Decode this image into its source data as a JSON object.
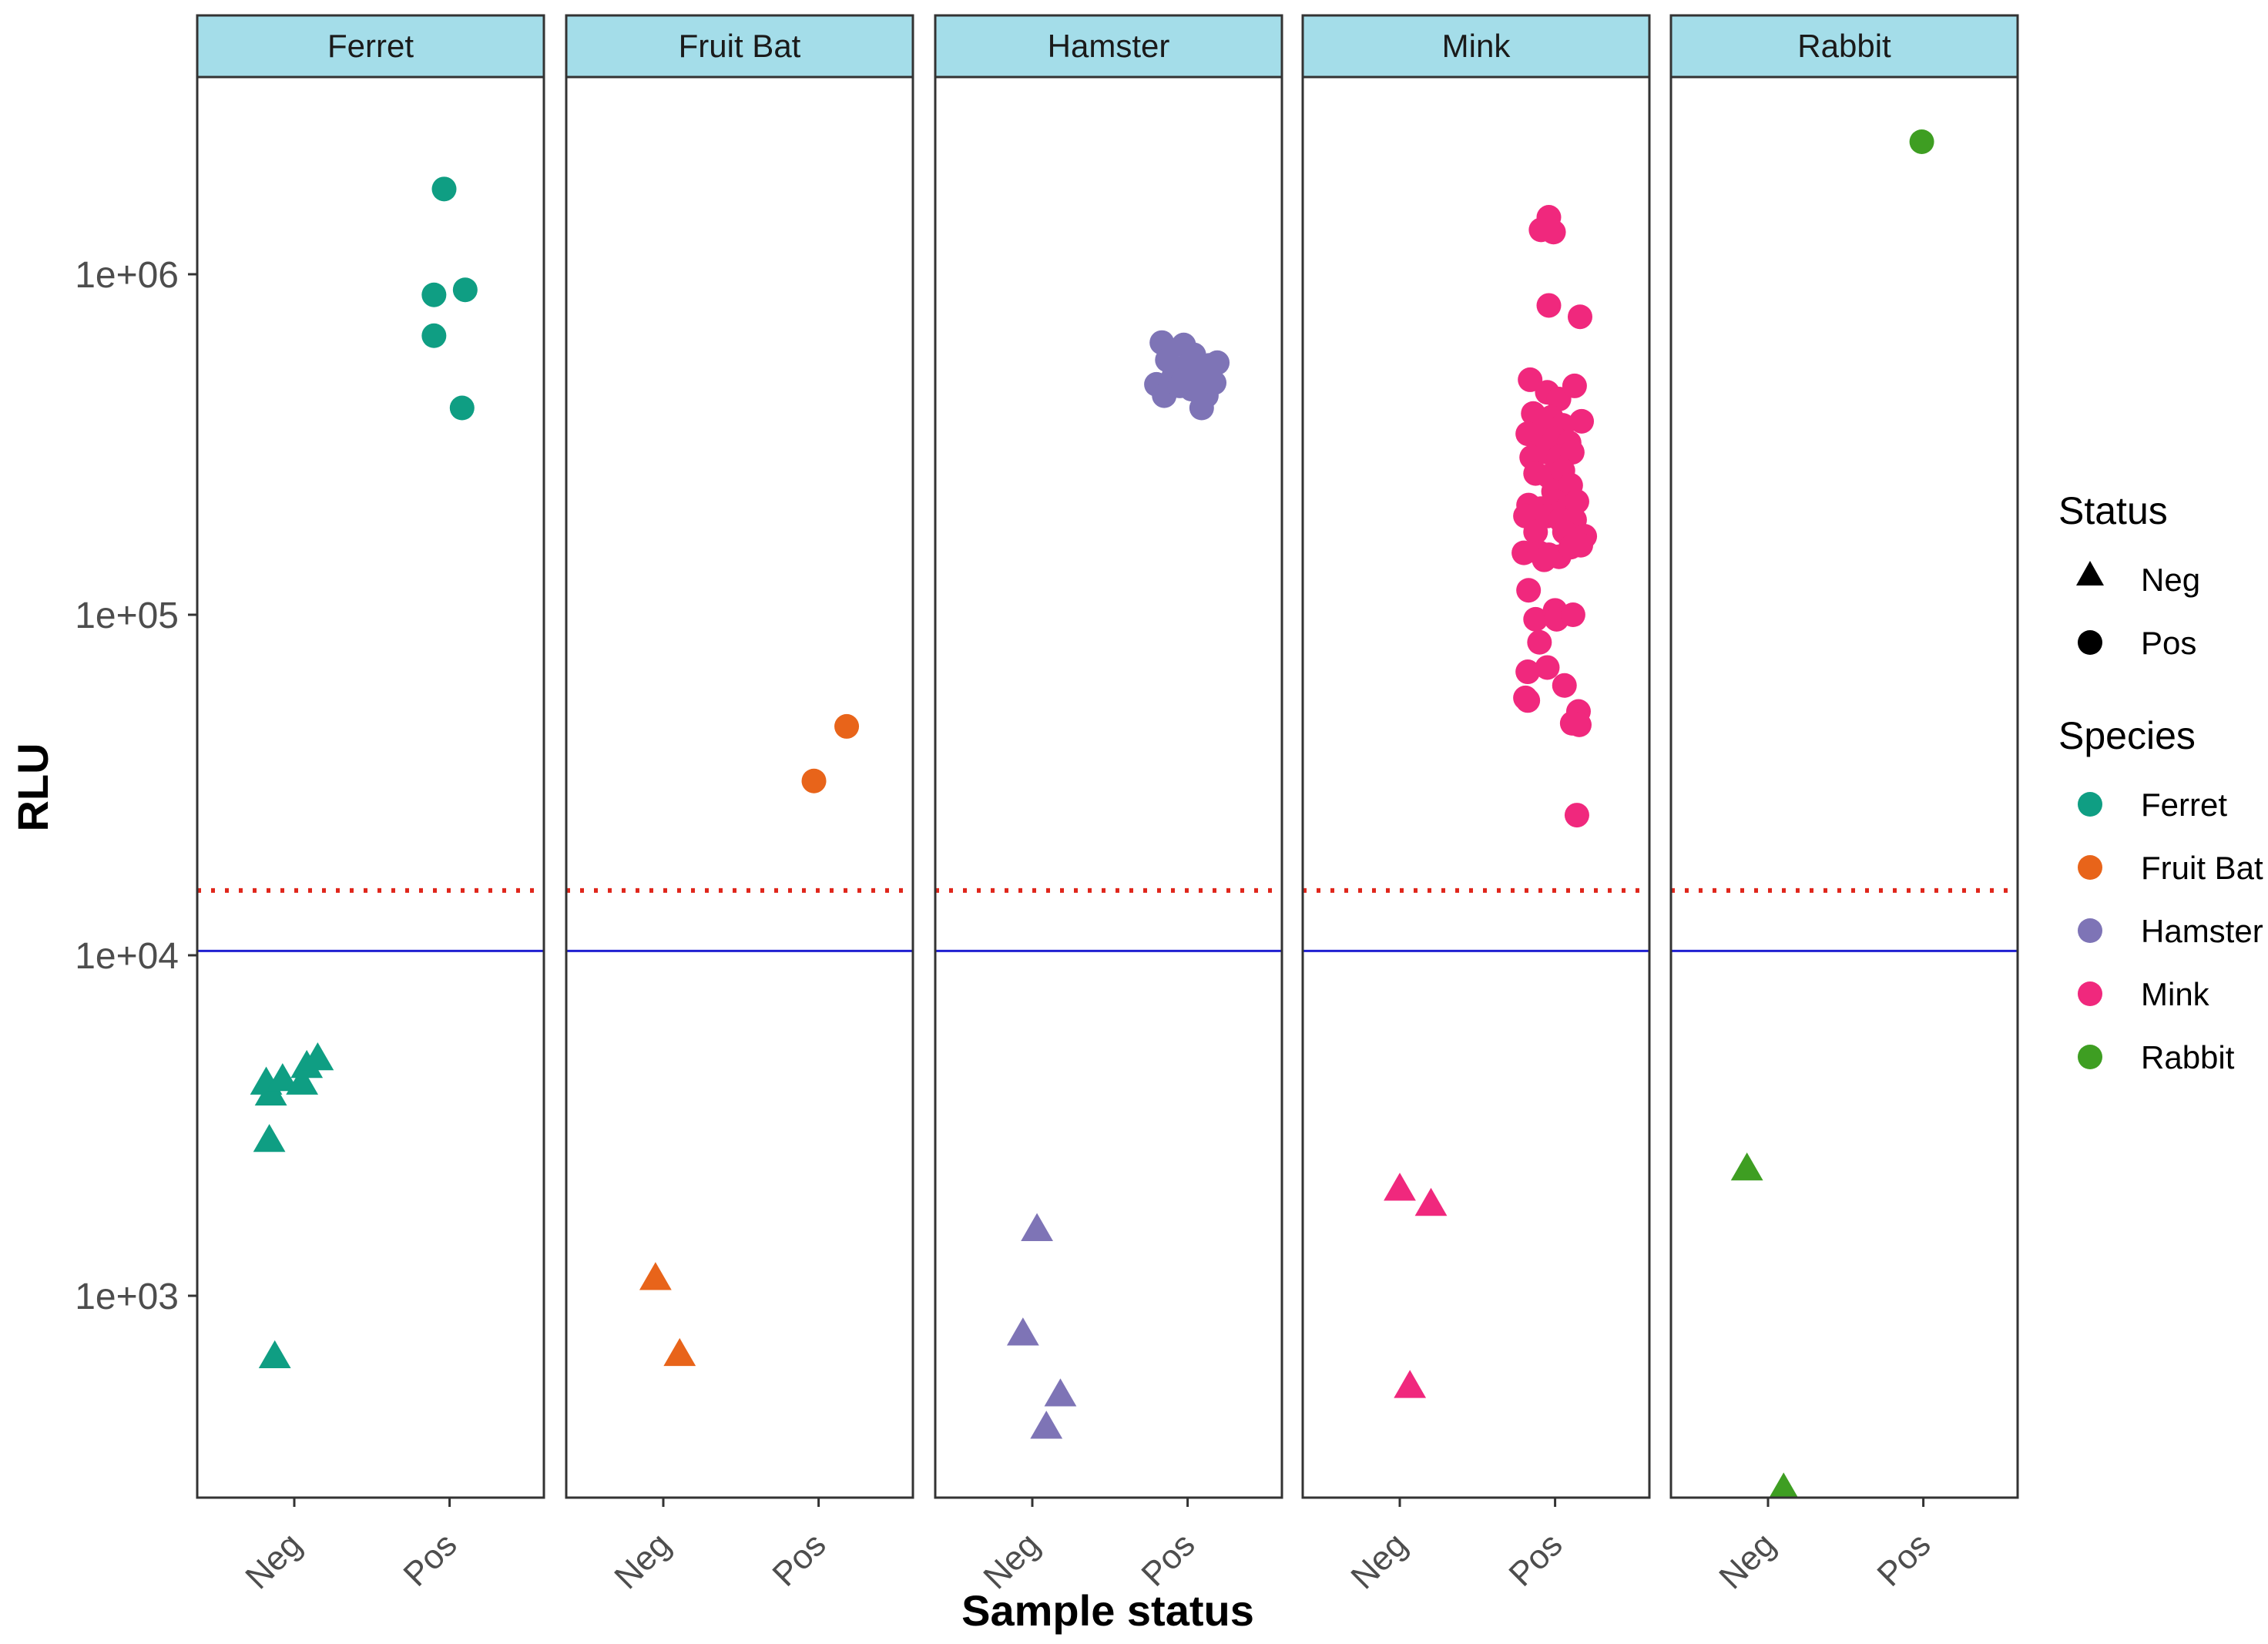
{
  "chart_data": {
    "type": "scatter",
    "facet_by": "Species",
    "xlabel": "Sample status",
    "ylabel": "RLU",
    "y_scale": "log10",
    "ylim": [
      250,
      5000000
    ],
    "y_ticks": [
      {
        "value": 1000,
        "label": "1e+03"
      },
      {
        "value": 10000,
        "label": "1e+04"
      },
      {
        "value": 100000,
        "label": "1e+05"
      },
      {
        "value": 1000000,
        "label": "1e+06"
      }
    ],
    "x_categories": [
      "Neg",
      "Pos"
    ],
    "cutoff_lines": [
      {
        "name": "blue-cutoff",
        "value": 10300,
        "color": "#1f1fd1",
        "style": "solid"
      },
      {
        "name": "red-cutoff",
        "value": 15500,
        "color": "#e0261b",
        "style": "dotted"
      }
    ],
    "legend": {
      "position": "right",
      "status_title": "Status",
      "status_items": [
        {
          "label": "Neg",
          "shape": "triangle"
        },
        {
          "label": "Pos",
          "shape": "circle"
        }
      ],
      "species_title": "Species",
      "species_items": [
        {
          "label": "Ferret",
          "color": "#0f9e83"
        },
        {
          "label": "Fruit Bat",
          "color": "#e8641a"
        },
        {
          "label": "Hamster",
          "color": "#7e74b6"
        },
        {
          "label": "Mink",
          "color": "#f0287d"
        },
        {
          "label": "Rabbit",
          "color": "#3e9e22"
        }
      ]
    },
    "panels": [
      {
        "species": "Ferret",
        "color": "#0f9e83",
        "points": [
          {
            "status": "Neg",
            "jitter": -0.36,
            "value": 4200
          },
          {
            "status": "Neg",
            "jitter": -0.3,
            "value": 3900
          },
          {
            "status": "Neg",
            "jitter": -0.15,
            "value": 4300
          },
          {
            "status": "Neg",
            "jitter": 0.1,
            "value": 4200
          },
          {
            "status": "Neg",
            "jitter": 0.16,
            "value": 4700
          },
          {
            "status": "Neg",
            "jitter": 0.3,
            "value": 4950
          },
          {
            "status": "Neg",
            "jitter": -0.32,
            "value": 2850
          },
          {
            "status": "Neg",
            "jitter": -0.25,
            "value": 660
          },
          {
            "status": "Pos",
            "jitter": -0.2,
            "value": 870000
          },
          {
            "status": "Pos",
            "jitter": -0.2,
            "value": 660000
          },
          {
            "status": "Pos",
            "jitter": -0.07,
            "value": 1780000
          },
          {
            "status": "Pos",
            "jitter": 0.2,
            "value": 900000
          },
          {
            "status": "Pos",
            "jitter": 0.16,
            "value": 405000
          }
        ]
      },
      {
        "species": "Fruit Bat",
        "color": "#e8641a",
        "points": [
          {
            "status": "Neg",
            "jitter": -0.1,
            "value": 1120
          },
          {
            "status": "Neg",
            "jitter": 0.21,
            "value": 670
          },
          {
            "status": "Pos",
            "jitter": -0.06,
            "value": 32500
          },
          {
            "status": "Pos",
            "jitter": 0.36,
            "value": 47000
          }
        ]
      },
      {
        "species": "Hamster",
        "color": "#7e74b6",
        "points": [
          {
            "status": "Neg",
            "jitter": 0.06,
            "value": 1560
          },
          {
            "status": "Neg",
            "jitter": -0.12,
            "value": 770
          },
          {
            "status": "Neg",
            "jitter": 0.36,
            "value": 510
          },
          {
            "status": "Neg",
            "jitter": 0.18,
            "value": 410
          },
          {
            "status": "Pos",
            "jitter": -0.33,
            "value": 630000
          },
          {
            "status": "Pos",
            "jitter": -0.26,
            "value": 560000
          },
          {
            "status": "Pos",
            "jitter": -0.4,
            "value": 475000
          },
          {
            "status": "Pos",
            "jitter": -0.3,
            "value": 440000
          },
          {
            "status": "Pos",
            "jitter": -0.18,
            "value": 500000
          },
          {
            "status": "Pos",
            "jitter": -0.05,
            "value": 620000
          },
          {
            "status": "Pos",
            "jitter": 0.0,
            "value": 540000
          },
          {
            "status": "Pos",
            "jitter": -0.1,
            "value": 470000
          },
          {
            "status": "Pos",
            "jitter": 0.08,
            "value": 580000
          },
          {
            "status": "Pos",
            "jitter": 0.18,
            "value": 500000
          },
          {
            "status": "Pos",
            "jitter": 0.05,
            "value": 460000
          },
          {
            "status": "Pos",
            "jitter": 0.28,
            "value": 540000
          },
          {
            "status": "Pos",
            "jitter": 0.24,
            "value": 440000
          },
          {
            "status": "Pos",
            "jitter": 0.18,
            "value": 405000
          },
          {
            "status": "Pos",
            "jitter": 0.34,
            "value": 480000
          },
          {
            "status": "Pos",
            "jitter": 0.38,
            "value": 550000
          },
          {
            "status": "Pos",
            "jitter": -0.05,
            "value": 490000
          },
          {
            "status": "Pos",
            "jitter": 0.12,
            "value": 520000
          }
        ]
      },
      {
        "species": "Mink",
        "color": "#f0287d",
        "points": [
          {
            "status": "Neg",
            "jitter": 0.0,
            "value": 2050
          },
          {
            "status": "Neg",
            "jitter": 0.4,
            "value": 1850
          },
          {
            "status": "Neg",
            "jitter": 0.13,
            "value": 540
          },
          {
            "status": "Pos",
            "jitter": -0.08,
            "value": 1470000
          },
          {
            "status": "Pos",
            "jitter": -0.18,
            "value": 1350000
          },
          {
            "status": "Pos",
            "jitter": -0.02,
            "value": 1330000
          },
          {
            "status": "Pos",
            "jitter": -0.08,
            "value": 810000
          },
          {
            "status": "Pos",
            "jitter": 0.32,
            "value": 750000
          },
          {
            "status": "Pos",
            "jitter": -0.32,
            "value": 490000
          },
          {
            "status": "Pos",
            "jitter": -0.1,
            "value": 450000
          },
          {
            "status": "Pos",
            "jitter": 0.05,
            "value": 430000
          },
          {
            "status": "Pos",
            "jitter": 0.25,
            "value": 470000
          },
          {
            "status": "Pos",
            "jitter": -0.28,
            "value": 390000
          },
          {
            "status": "Pos",
            "jitter": -0.2,
            "value": 370000
          },
          {
            "status": "Pos",
            "jitter": -0.05,
            "value": 380000
          },
          {
            "status": "Pos",
            "jitter": 0.1,
            "value": 360000
          },
          {
            "status": "Pos",
            "jitter": 0.34,
            "value": 370000
          },
          {
            "status": "Pos",
            "jitter": -0.35,
            "value": 340000
          },
          {
            "status": "Pos",
            "jitter": -0.15,
            "value": 320000
          },
          {
            "status": "Pos",
            "jitter": 0.0,
            "value": 330000
          },
          {
            "status": "Pos",
            "jitter": 0.18,
            "value": 320000
          },
          {
            "status": "Pos",
            "jitter": -0.3,
            "value": 290000
          },
          {
            "status": "Pos",
            "jitter": -0.1,
            "value": 300000
          },
          {
            "status": "Pos",
            "jitter": 0.05,
            "value": 290000
          },
          {
            "status": "Pos",
            "jitter": 0.22,
            "value": 300000
          },
          {
            "status": "Pos",
            "jitter": -0.25,
            "value": 260000
          },
          {
            "status": "Pos",
            "jitter": -0.08,
            "value": 255000
          },
          {
            "status": "Pos",
            "jitter": 0.1,
            "value": 265000
          },
          {
            "status": "Pos",
            "jitter": -0.02,
            "value": 230000
          },
          {
            "status": "Pos",
            "jitter": 0.2,
            "value": 240000
          },
          {
            "status": "Pos",
            "jitter": -0.34,
            "value": 210000
          },
          {
            "status": "Pos",
            "jitter": -0.18,
            "value": 205000
          },
          {
            "status": "Pos",
            "jitter": 0.0,
            "value": 215000
          },
          {
            "status": "Pos",
            "jitter": 0.15,
            "value": 205000
          },
          {
            "status": "Pos",
            "jitter": 0.28,
            "value": 215000
          },
          {
            "status": "Pos",
            "jitter": -0.38,
            "value": 195000
          },
          {
            "status": "Pos",
            "jitter": -0.1,
            "value": 195000
          },
          {
            "status": "Pos",
            "jitter": 0.07,
            "value": 190000
          },
          {
            "status": "Pos",
            "jitter": 0.25,
            "value": 190000
          },
          {
            "status": "Pos",
            "jitter": -0.25,
            "value": 175000
          },
          {
            "status": "Pos",
            "jitter": 0.12,
            "value": 175000
          },
          {
            "status": "Pos",
            "jitter": 0.38,
            "value": 170000
          },
          {
            "status": "Pos",
            "jitter": -0.4,
            "value": 152000
          },
          {
            "status": "Pos",
            "jitter": -0.2,
            "value": 152000
          },
          {
            "status": "Pos",
            "jitter": -0.08,
            "value": 150000
          },
          {
            "status": "Pos",
            "jitter": 0.05,
            "value": 148000
          },
          {
            "status": "Pos",
            "jitter": 0.2,
            "value": 158000
          },
          {
            "status": "Pos",
            "jitter": 0.33,
            "value": 160000
          },
          {
            "status": "Pos",
            "jitter": -0.14,
            "value": 145000
          },
          {
            "status": "Pos",
            "jitter": -0.34,
            "value": 118000
          },
          {
            "status": "Pos",
            "jitter": -0.25,
            "value": 97000
          },
          {
            "status": "Pos",
            "jitter": -0.2,
            "value": 83000
          },
          {
            "status": "Pos",
            "jitter": 0.0,
            "value": 103000
          },
          {
            "status": "Pos",
            "jitter": 0.02,
            "value": 97000
          },
          {
            "status": "Pos",
            "jitter": 0.23,
            "value": 100000
          },
          {
            "status": "Pos",
            "jitter": -0.35,
            "value": 68000
          },
          {
            "status": "Pos",
            "jitter": -0.1,
            "value": 70000
          },
          {
            "status": "Pos",
            "jitter": 0.12,
            "value": 62000
          },
          {
            "status": "Pos",
            "jitter": -0.38,
            "value": 57000
          },
          {
            "status": "Pos",
            "jitter": -0.35,
            "value": 56000
          },
          {
            "status": "Pos",
            "jitter": 0.3,
            "value": 52000
          },
          {
            "status": "Pos",
            "jitter": 0.22,
            "value": 48000
          },
          {
            "status": "Pos",
            "jitter": 0.31,
            "value": 47500
          },
          {
            "status": "Pos",
            "jitter": 0.28,
            "value": 25800
          }
        ]
      },
      {
        "species": "Rabbit",
        "color": "#3e9e22",
        "points": [
          {
            "status": "Neg",
            "jitter": -0.27,
            "value": 2350
          },
          {
            "status": "Neg",
            "jitter": 0.2,
            "value": 270
          },
          {
            "status": "Pos",
            "jitter": -0.02,
            "value": 2450000
          }
        ]
      }
    ]
  }
}
